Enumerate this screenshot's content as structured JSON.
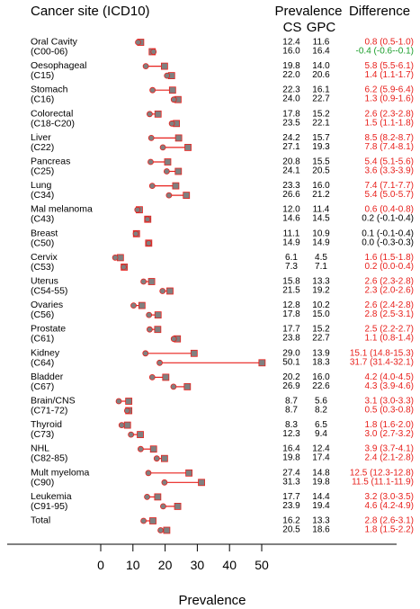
{
  "chart_data": {
    "type": "dot-range",
    "xlabel": "Prevalence",
    "xlim": [
      -28,
      62
    ],
    "xticks": [
      0,
      10,
      20,
      30,
      40,
      50
    ],
    "headers": {
      "site": "Cancer site (ICD10)",
      "prevalence": "Prevalence",
      "cs": "CS",
      "gpc": "GPC",
      "difference": "Difference"
    },
    "colors": {
      "positive": "#e8201c",
      "negative": "#1a9e2a",
      "neutral": "#000000",
      "marker": "#808080"
    },
    "rows": [
      {
        "name": "Oral Cavity",
        "code": "(C00-06)",
        "m_cs": 12.4,
        "m_gpc": 11.6,
        "m_diff": "0.8 (0.5-1.0)",
        "f_cs": 16.0,
        "f_gpc": 16.4,
        "f_diff": "-0.4 (-0.6--0.1)"
      },
      {
        "name": "Oesophageal",
        "code": "(C15)",
        "m_cs": 19.8,
        "m_gpc": 14.0,
        "m_diff": "5.8 (5.5-6.1)",
        "f_cs": 22.0,
        "f_gpc": 20.6,
        "f_diff": "1.4 (1.1-1.7)"
      },
      {
        "name": "Stomach",
        "code": "(C16)",
        "m_cs": 22.3,
        "m_gpc": 16.1,
        "m_diff": "6.2 (5.9-6.4)",
        "f_cs": 24.0,
        "f_gpc": 22.7,
        "f_diff": "1.3 (0.9-1.6)"
      },
      {
        "name": "Colorectal",
        "code": "(C18-C20)",
        "m_cs": 17.8,
        "m_gpc": 15.2,
        "m_diff": "2.6 (2.3-2.8)",
        "f_cs": 23.5,
        "f_gpc": 22.1,
        "f_diff": "1.5 (1.1-1.8)"
      },
      {
        "name": "Liver",
        "code": "(C22)",
        "m_cs": 24.2,
        "m_gpc": 15.7,
        "m_diff": "8.5 (8.2-8.7)",
        "f_cs": 27.1,
        "f_gpc": 19.3,
        "f_diff": "7.8 (7.4-8.1)"
      },
      {
        "name": "Pancreas",
        "code": "(C25)",
        "m_cs": 20.8,
        "m_gpc": 15.5,
        "m_diff": "5.4 (5.1-5.6)",
        "f_cs": 24.1,
        "f_gpc": 20.5,
        "f_diff": "3.6 (3.3-3.9)"
      },
      {
        "name": "Lung",
        "code": "(C34)",
        "m_cs": 23.3,
        "m_gpc": 16.0,
        "m_diff": "7.4 (7.1-7.7)",
        "f_cs": 26.6,
        "f_gpc": 21.2,
        "f_diff": "5.4 (5.0-5.7)"
      },
      {
        "name": "Mal melanoma",
        "code": "(C43)",
        "m_cs": 12.0,
        "m_gpc": 11.4,
        "m_diff": "0.6 (0.4-0.8)",
        "f_cs": 14.6,
        "f_gpc": 14.5,
        "f_diff": "0.2 (-0.1-0.4)"
      },
      {
        "name": "Breast",
        "code": "(C50)",
        "m_cs": 11.1,
        "m_gpc": 10.9,
        "m_diff": "0.1 (-0.1-0.4)",
        "f_cs": 14.9,
        "f_gpc": 14.9,
        "f_diff": "0.0 (-0.3-0.3)"
      },
      {
        "name": "Cervix",
        "code": "(C53)",
        "m_cs": 6.1,
        "m_gpc": 4.5,
        "m_diff": "1.6 (1.5-1.8)",
        "f_cs": 7.3,
        "f_gpc": 7.1,
        "f_diff": "0.2 (0.0-0.4)"
      },
      {
        "name": "Uterus",
        "code": "(C54-55)",
        "m_cs": 15.8,
        "m_gpc": 13.3,
        "m_diff": "2.6 (2.3-2.8)",
        "f_cs": 21.5,
        "f_gpc": 19.2,
        "f_diff": "2.3 (2.0-2.6)"
      },
      {
        "name": "Ovaries",
        "code": "(C56)",
        "m_cs": 12.8,
        "m_gpc": 10.2,
        "m_diff": "2.6 (2.4-2.8)",
        "f_cs": 17.8,
        "f_gpc": 15.0,
        "f_diff": "2.8 (2.5-3.1)"
      },
      {
        "name": "Prostate",
        "code": "(C61)",
        "m_cs": 17.7,
        "m_gpc": 15.2,
        "m_diff": "2.5 (2.2-2.7)",
        "f_cs": 23.8,
        "f_gpc": 22.7,
        "f_diff": "1.1 (0.8-1.4)"
      },
      {
        "name": "Kidney",
        "code": "(C64)",
        "m_cs": 29.0,
        "m_gpc": 13.9,
        "m_diff": "15.1 (14.8-15.3)",
        "f_cs": 50.1,
        "f_gpc": 18.3,
        "f_diff": "31.7 (31.4-32.1)"
      },
      {
        "name": "Bladder",
        "code": "(C67)",
        "m_cs": 20.2,
        "m_gpc": 16.0,
        "m_diff": "4.2 (4.0-4.5)",
        "f_cs": 26.9,
        "f_gpc": 22.6,
        "f_diff": "4.3 (3.9-4.6)"
      },
      {
        "name": "Brain/CNS",
        "code": "(C71-72)",
        "m_cs": 8.7,
        "m_gpc": 5.6,
        "m_diff": "3.1 (3.0-3.3)",
        "f_cs": 8.7,
        "f_gpc": 8.2,
        "f_diff": "0.5 (0.3-0.8)"
      },
      {
        "name": "Thyroid",
        "code": "(C73)",
        "m_cs": 8.3,
        "m_gpc": 6.5,
        "m_diff": "1.8 (1.6-2.0)",
        "f_cs": 12.3,
        "f_gpc": 9.4,
        "f_diff": "3.0 (2.7-3.2)"
      },
      {
        "name": "NHL",
        "code": "(C82-85)",
        "m_cs": 16.4,
        "m_gpc": 12.4,
        "m_diff": "3.9 (3.7-4.1)",
        "f_cs": 19.8,
        "f_gpc": 17.4,
        "f_diff": "2.4 (2.1-2.8)"
      },
      {
        "name": "Mult myeloma",
        "code": "(C90)",
        "m_cs": 27.4,
        "m_gpc": 14.8,
        "m_diff": "12.5 (12.3-12.8)",
        "f_cs": 31.3,
        "f_gpc": 19.8,
        "f_diff": "11.5 (11.1-11.9)"
      },
      {
        "name": "Leukemia",
        "code": "(C91-95)",
        "m_cs": 17.7,
        "m_gpc": 14.4,
        "m_diff": "3.2 (3.0-3.5)",
        "f_cs": 23.9,
        "f_gpc": 19.4,
        "f_diff": "4.6 (4.2-4.9)"
      },
      {
        "name": "Total",
        "code": "",
        "m_cs": 16.2,
        "m_gpc": 13.3,
        "m_diff": "2.8 (2.6-3.1)",
        "f_cs": 20.5,
        "f_gpc": 18.6,
        "f_diff": "1.8 (1.5-2.2)"
      }
    ]
  }
}
